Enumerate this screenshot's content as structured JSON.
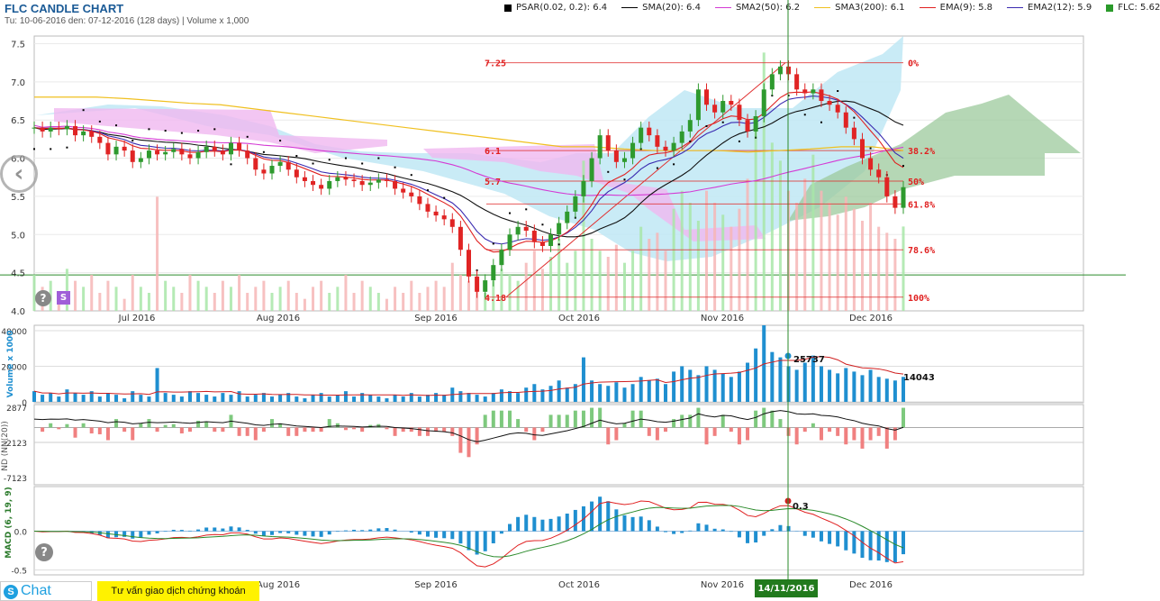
{
  "header": {
    "title": "FLC CANDLE CHART",
    "subtitle": "Tu: 10-06-2016 den: 07-12-2016 (128 days) | Volume x 1,000"
  },
  "legend": [
    {
      "label": "PSAR(0.02, 0.2): 6.4",
      "color": "#000000",
      "kind": "box"
    },
    {
      "label": "SMA(20): 6.4",
      "color": "#000000",
      "kind": "line"
    },
    {
      "label": "SMA2(50): 6.2",
      "color": "#d43ad4",
      "kind": "line"
    },
    {
      "label": "SMA3(200): 6.1",
      "color": "#f0c020",
      "kind": "line"
    },
    {
      "label": "EMA(9): 5.8",
      "color": "#e02020",
      "kind": "line"
    },
    {
      "label": "EMA2(12): 5.9",
      "color": "#3a2ab0",
      "kind": "line"
    },
    {
      "label": "FLC: 5.62",
      "color": "#2a9a2a",
      "kind": "box"
    }
  ],
  "colors": {
    "up": "#2e9a2e",
    "down": "#e02424",
    "ichimoku_bull": "#bfe8f5",
    "ichimoku_bear": "#f0b8f0",
    "cloud_green": "#9cc99c",
    "vol_bar": "#1f8fd0",
    "crosshair": "#2a8a2a"
  },
  "icons": {
    "nav": "chevron-left-icon",
    "help": "question-icon",
    "chat": "skype-icon"
  },
  "chart_data": [
    {
      "type": "candlestick",
      "panel": "price",
      "ylim": [
        4.0,
        7.6
      ],
      "yticks": [
        "7.5",
        "7.0",
        "6.5",
        "6.0",
        "5.5",
        "5.0",
        "4.5",
        "4.0"
      ],
      "xticks": [
        "Jul 2016",
        "Aug 2016",
        "Sep 2016",
        "Oct 2016",
        "Nov 2016",
        "Dec 2016"
      ],
      "close": [
        6.4,
        6.35,
        6.4,
        6.38,
        6.42,
        6.3,
        6.35,
        6.28,
        6.2,
        6.05,
        6.15,
        6.1,
        5.95,
        6.0,
        6.1,
        6.05,
        6.08,
        6.12,
        6.05,
        6.0,
        6.08,
        6.15,
        6.1,
        6.05,
        6.2,
        6.1,
        6.0,
        5.85,
        5.8,
        5.9,
        5.95,
        5.85,
        5.75,
        5.7,
        5.65,
        5.6,
        5.7,
        5.75,
        5.72,
        5.7,
        5.65,
        5.68,
        5.72,
        5.7,
        5.6,
        5.55,
        5.5,
        5.4,
        5.3,
        5.25,
        5.2,
        5.1,
        4.8,
        4.45,
        4.25,
        4.4,
        4.6,
        4.8,
        5.0,
        5.1,
        5.05,
        4.9,
        4.85,
        5.0,
        5.15,
        5.3,
        5.5,
        5.7,
        6.0,
        6.3,
        6.1,
        5.95,
        6.0,
        6.2,
        6.4,
        6.3,
        6.15,
        6.1,
        6.2,
        6.35,
        6.5,
        6.9,
        6.7,
        6.6,
        6.75,
        6.7,
        6.5,
        6.35,
        6.55,
        6.9,
        7.1,
        7.2,
        7.1,
        6.9,
        6.85,
        6.9,
        6.75,
        6.7,
        6.6,
        6.4,
        6.25,
        6.0,
        5.85,
        5.75,
        5.5,
        5.35,
        5.62
      ],
      "sma200": [
        6.8,
        6.8,
        6.8,
        6.78,
        6.75,
        6.72,
        6.7,
        6.65,
        6.6,
        6.55,
        6.5,
        6.45,
        6.4,
        6.35,
        6.3,
        6.25,
        6.2,
        6.15,
        6.15,
        6.12,
        6.1,
        6.1,
        6.1,
        6.08,
        6.1,
        6.12,
        6.15,
        6.15,
        6.1
      ],
      "fib_levels": [
        {
          "pct": "0%",
          "price": 7.25,
          "label": "7.25"
        },
        {
          "pct": "38.2%",
          "price": 6.1,
          "label": "6.1"
        },
        {
          "pct": "50%",
          "price": 5.7,
          "label": "5.7"
        },
        {
          "pct": "61.8%",
          "price": 5.4,
          "label": ""
        },
        {
          "pct": "78.6%",
          "price": 4.8,
          "label": ""
        },
        {
          "pct": "100%",
          "price": 4.18,
          "label": "4.18"
        }
      ]
    },
    {
      "type": "bar",
      "panel": "volume",
      "ylabel": "Volume x 1000",
      "yticks": [
        "40000",
        "20000",
        "0"
      ],
      "ylim": [
        0,
        42000
      ],
      "values": [
        6000,
        4000,
        5000,
        3000,
        7000,
        5000,
        4000,
        6000,
        3000,
        5000,
        4000,
        2000,
        6000,
        4000,
        3000,
        19000,
        5000,
        4000,
        3000,
        6000,
        5000,
        4000,
        3000,
        5000,
        4000,
        6000,
        3000,
        4000,
        5000,
        3000,
        4000,
        5000,
        3000,
        2000,
        4000,
        5000,
        3000,
        4000,
        6000,
        3000,
        5000,
        4000,
        3000,
        2000,
        4000,
        3000,
        5000,
        3000,
        4000,
        5000,
        4000,
        8000,
        6000,
        5000,
        4000,
        3000,
        5000,
        7000,
        6000,
        5000,
        8000,
        10000,
        7000,
        9000,
        12000,
        8000,
        10000,
        25000,
        12000,
        10000,
        9000,
        11000,
        8000,
        10000,
        14000,
        12000,
        13000,
        10000,
        17000,
        20000,
        18000,
        15000,
        20000,
        18000,
        16000,
        14000,
        17000,
        22000,
        30000,
        43000,
        28000,
        25000,
        20000,
        18000,
        22000,
        26000,
        20000,
        18000,
        16000,
        19000,
        17000,
        15000,
        18000,
        14000,
        13000,
        12000,
        14043
      ],
      "annotations": [
        "25737",
        "14043"
      ]
    },
    {
      "type": "bar",
      "panel": "nd",
      "ylabel": "ND (NN(20))",
      "yticks": [
        "2877",
        "-2123",
        "-7123"
      ],
      "ylim": [
        -8000,
        3000
      ]
    },
    {
      "type": "line",
      "panel": "macd",
      "ylabel": "MACD (6, 19, 9)",
      "yticks": [
        "0.0",
        "-0.5"
      ],
      "ylim": [
        -0.55,
        0.55
      ],
      "annotations": [
        "0.3"
      ]
    }
  ],
  "crosshair": {
    "date_label": "14/11/2016"
  },
  "buttons": {
    "chat_label": "Chat",
    "consult_label": "Tư vấn giao dịch chứng khoán",
    "s_badge": "S",
    "help": "?"
  }
}
